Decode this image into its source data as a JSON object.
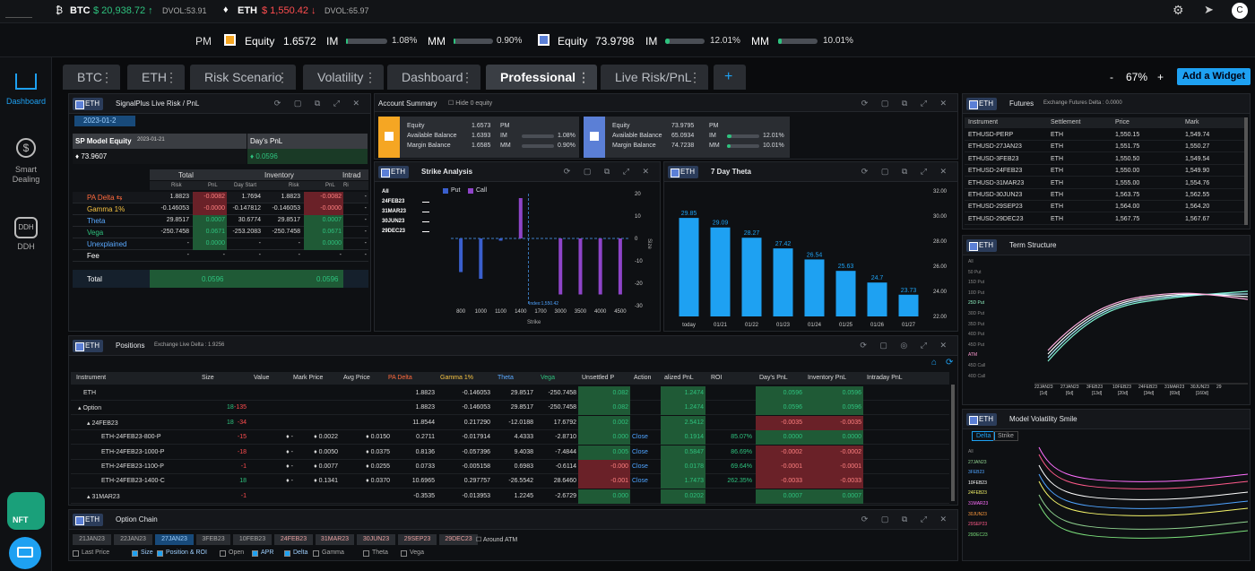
{
  "topbar": {
    "btc_label": "BTC",
    "btc_price": "$ 20,938.72 ↑",
    "btc_dvol": "DVOL:53.91",
    "eth_label": "ETH",
    "eth_price": "$ 1,550.42 ↓",
    "eth_dvol": "DVOL:65.97",
    "avatar": "C"
  },
  "summary": {
    "btc_sym": "PM",
    "equity1_label": "Equity",
    "equity1": "1.6572",
    "im1_label": "IM",
    "im1": "1.08%",
    "mm1_label": "MM",
    "mm1": "0.90%",
    "equity2_label": "Equity",
    "equity2": "73.9798",
    "im2_label": "IM",
    "im2": "12.01%",
    "mm2_label": "MM",
    "mm2": "10.01%",
    "im1_fill": 0.05,
    "mm1_fill": 0.04,
    "im2_fill": 0.12,
    "mm2_fill": 0.1
  },
  "sidebar": {
    "dashboard": "Dashboard",
    "smart1": "Smart",
    "smart2": "Dealing",
    "ddh_icon": "DDH",
    "ddh": "DDH",
    "nft": "NFT"
  },
  "tabs": [
    "BTC",
    "ETH",
    "Risk Scenario",
    "Volatility",
    "Dashboard",
    "Professional",
    "Live Risk/PnL"
  ],
  "zoom": {
    "minus": "-",
    "value": "67%",
    "plus": "+",
    "add_widget": "Add a Widget"
  },
  "live_risk": {
    "eth": "ETH",
    "title": "SignalPlus Live Risk / PnL",
    "date": "2023-01-2",
    "sp_label": "SP Model Equity",
    "sp_date": "2023-01-21",
    "sp_value": "73.9607",
    "day_pnl_label": "Day's PnL",
    "day_pnl": "0.0596",
    "groups": [
      "Total",
      "Inventory",
      "Intrad"
    ],
    "subheads": [
      "Risk",
      "PnL",
      "Day Start",
      "Risk",
      "PnL",
      "Ri"
    ],
    "rows": [
      {
        "name": "PA Delta ⇆",
        "c": [
          "1.8823",
          "-0.0082",
          "1.7694",
          "1.8823",
          "-0.0082",
          "-"
        ]
      },
      {
        "name": "Gamma 1%",
        "c": [
          "-0.146053",
          "-0.0000",
          "-0.147812",
          "-0.146053",
          "-0.0000",
          "-"
        ]
      },
      {
        "name": "Theta",
        "c": [
          "29.8517",
          "0.0007",
          "30.6774",
          "29.8517",
          "0.0007",
          "-"
        ]
      },
      {
        "name": "Vega",
        "c": [
          "-250.7458",
          "0.0671",
          "-253.2083",
          "-250.7458",
          "0.0671",
          "-"
        ]
      },
      {
        "name": "Unexplained",
        "c": [
          "-",
          "0.0000",
          "-",
          "-",
          "0.0000",
          "-"
        ]
      },
      {
        "name": "Fee",
        "c": [
          "-",
          "-",
          "-",
          "-",
          "-",
          "-"
        ]
      }
    ],
    "total_label": "Total",
    "total1": "0.0596",
    "total2": "0.0596"
  },
  "account": {
    "title": "Account Summary",
    "hide": "Hide 0 equity",
    "a": {
      "equity_l": "Equity",
      "equity": "1.6573",
      "avail_l": "Available Balance",
      "avail": "1.6393",
      "margin_l": "Margin Balance",
      "margin": "1.6585",
      "pm": "PM",
      "im_l": "IM",
      "im": "1.08%",
      "mm_l": "MM",
      "mm": "0.90%"
    },
    "b": {
      "equity_l": "Equity",
      "equity": "73.9795",
      "avail_l": "Available Balance",
      "avail": "65.0934",
      "margin_l": "Margin Balance",
      "margin": "74.7238",
      "pm": "PM",
      "im_l": "IM",
      "im": "12.01%",
      "mm_l": "MM",
      "mm": "10.01%"
    }
  },
  "strike": {
    "eth": "ETH",
    "title": "Strike Analysis",
    "legend_put": "Put",
    "legend_call": "Call",
    "expiries": [
      "All",
      "24FEB23",
      "31MAR23",
      "30JUN23",
      "29DEC23"
    ],
    "x_title": "Strike",
    "y_title": "Size",
    "index_label": "Index:1,550.42"
  },
  "theta_chart": {
    "eth": "ETH",
    "title": "7 Day Theta"
  },
  "futures": {
    "eth": "ETH",
    "title": "Futures",
    "delta": "Exchange Futures Delta : 0.0000",
    "headers": [
      "Instrument",
      "Settlement",
      "Price",
      "Mark"
    ],
    "rows": [
      [
        "ETHUSD-PERP",
        "ETH",
        "1,550.15",
        "1,549.74"
      ],
      [
        "ETHUSD-27JAN23",
        "ETH",
        "1,551.75",
        "1,550.27"
      ],
      [
        "ETHUSD-3FEB23",
        "ETH",
        "1,550.50",
        "1,549.54"
      ],
      [
        "ETHUSD-24FEB23",
        "ETH",
        "1,550.00",
        "1,549.90"
      ],
      [
        "ETHUSD-31MAR23",
        "ETH",
        "1,555.00",
        "1,554.76"
      ],
      [
        "ETHUSD-30JUN23",
        "ETH",
        "1,563.75",
        "1,562.55"
      ],
      [
        "ETHUSD-29SEP23",
        "ETH",
        "1,564.00",
        "1,564.20"
      ],
      [
        "ETHUSD-29DEC23",
        "ETH",
        "1,567.75",
        "1,567.67"
      ]
    ]
  },
  "term": {
    "eth": "ETH",
    "title": "Term Structure",
    "labels": [
      "All",
      "50 Put",
      "15D Put",
      "10D Put",
      "25D Put",
      "30D Put",
      "35D Put",
      "40D Put",
      "45D Put",
      "ATM",
      "45D Call",
      "40D Call"
    ],
    "xlabels": [
      "22JAN23",
      "27JAN23",
      "3FEB23",
      "10FEB23",
      "24FEB23",
      "31MAR23",
      "30JUN23",
      "29"
    ],
    "xdays": [
      "[1d]",
      "[6d]",
      "[13d]",
      "[20d]",
      "[34d]",
      "[69d]",
      "[160d]",
      ""
    ]
  },
  "smile": {
    "eth": "ETH",
    "title": "Model Volatility Smile",
    "tab1": "Delta",
    "tab2": "Strike",
    "labels": [
      "All",
      "27JAN23",
      "3FEB23",
      "10FEB23",
      "24FEB23",
      "31MAR23",
      "30JUN23",
      "29SEP23",
      "29DEC23"
    ]
  },
  "positions": {
    "eth": "ETH",
    "title": "Positions",
    "delta": "Exchange Live Delta : 1.9256",
    "headers": [
      "Instrument",
      "Size",
      "Value",
      "Mark Price",
      "Avg Price",
      "PA Delta",
      "Gamma 1%",
      "Theta",
      "Vega",
      "Unsettled P",
      "Action",
      "alized PnL",
      "ROI",
      "Day's PnL",
      "Inventory PnL",
      "Intraday PnL"
    ],
    "rows": [
      {
        "inst": "ETH",
        "size": "",
        "size2": "",
        "value": "",
        "mark": "",
        "avg": "",
        "delta": "1.8823",
        "gamma": "-0.146053",
        "theta": "29.8517",
        "vega": "-250.7458",
        "unset": "0.082",
        "action": "",
        "real": "1.2474",
        "roi": "",
        "day": "0.0596",
        "inv": "0.0596",
        "intra": ""
      },
      {
        "inst": "▴ Option",
        "size": "-135",
        "size2": "18",
        "value": "",
        "mark": "",
        "avg": "",
        "delta": "1.8823",
        "gamma": "-0.146053",
        "theta": "29.8517",
        "vega": "-250.7458",
        "unset": "0.082",
        "action": "",
        "real": "1.2474",
        "roi": "",
        "day": "0.0596",
        "inv": "0.0596",
        "intra": ""
      },
      {
        "inst": "▴ 24FEB23",
        "size": "-34",
        "size2": "18",
        "value": "",
        "mark": "",
        "avg": "",
        "delta": "11.8544",
        "gamma": "0.217290",
        "theta": "-12.0188",
        "vega": "17.6792",
        "unset": "0.002",
        "action": "",
        "real": "2.5412",
        "roi": "",
        "day": "-0.0035",
        "inv": "-0.0035",
        "intra": ""
      },
      {
        "inst": "ETH-24FEB23-800-P",
        "size": "-15",
        "size2": "",
        "value": "♦ -",
        "mark": "♦ 0.0022",
        "avg": "♦ 0.0150",
        "delta": "0.2711",
        "gamma": "-0.017914",
        "theta": "4.4333",
        "vega": "-2.8710",
        "unset": "0.000",
        "action": "Close",
        "real": "0.1914",
        "roi": "85.07%",
        "day": "0.0000",
        "inv": "0.0000",
        "intra": ""
      },
      {
        "inst": "ETH-24FEB23-1000-P",
        "size": "-18",
        "size2": "",
        "value": "♦ -",
        "mark": "♦ 0.0050",
        "avg": "♦ 0.0375",
        "delta": "0.8136",
        "gamma": "-0.057396",
        "theta": "9.4038",
        "vega": "-7.4844",
        "unset": "0.005",
        "action": "Close",
        "real": "0.5847",
        "roi": "86.69%",
        "day": "-0.0002",
        "inv": "-0.0002",
        "intra": ""
      },
      {
        "inst": "ETH-24FEB23-1100-P",
        "size": "-1",
        "size2": "",
        "value": "♦ -",
        "mark": "♦ 0.0077",
        "avg": "♦ 0.0255",
        "delta": "0.0733",
        "gamma": "-0.005158",
        "theta": "0.6983",
        "vega": "-0.6114",
        "unset": "-0.000",
        "action": "Close",
        "real": "0.0178",
        "roi": "69.64%",
        "day": "-0.0001",
        "inv": "-0.0001",
        "intra": ""
      },
      {
        "inst": "ETH-24FEB23-1400-C",
        "size": "18",
        "size2": "",
        "value": "♦ -",
        "mark": "♦ 0.1341",
        "avg": "♦ 0.0370",
        "delta": "10.6965",
        "gamma": "0.297757",
        "theta": "-26.5542",
        "vega": "28.6460",
        "unset": "-0.001",
        "action": "Close",
        "real": "1.7473",
        "roi": "262.35%",
        "day": "-0.0033",
        "inv": "-0.0033",
        "intra": ""
      },
      {
        "inst": "▴ 31MAR23",
        "size": "-1",
        "size2": "",
        "value": "",
        "mark": "",
        "avg": "",
        "delta": "-0.3535",
        "gamma": "-0.013953",
        "theta": "1.2245",
        "vega": "-2.6729",
        "unset": "0.000",
        "action": "",
        "real": "0.0202",
        "roi": "",
        "day": "0.0007",
        "inv": "0.0007",
        "intra": ""
      }
    ]
  },
  "chain": {
    "eth": "ETH",
    "title": "Option Chain",
    "expiries": [
      "21JAN23",
      "22JAN23",
      "27JAN23",
      "3FEB23",
      "10FEB23",
      "24FEB23",
      "31MAR23",
      "30JUN23",
      "29SEP23",
      "29DEC23"
    ],
    "around": "Around ATM",
    "checks": [
      "Last Price",
      "Size",
      "Position & ROI",
      "Open",
      "APR",
      "Delta",
      "Gamma",
      "Theta",
      "Vega"
    ]
  },
  "chart_data": [
    {
      "type": "bar",
      "title": "7 Day Theta",
      "categories": [
        "today",
        "01/21",
        "01/22",
        "01/23",
        "01/24",
        "01/25",
        "01/26",
        "01/27"
      ],
      "values": [
        29.85,
        29.09,
        28.27,
        27.42,
        26.54,
        25.63,
        24.7,
        23.73
      ],
      "ylim": [
        22,
        32
      ],
      "yticks": [
        "32.00",
        "30.00",
        "28.00",
        "26.00",
        "24.00",
        "22.00"
      ]
    },
    {
      "type": "bar",
      "title": "Strike Analysis",
      "xlabel": "Strike",
      "ylabel": "Size",
      "categories": [
        "800",
        "1000",
        "1100",
        "1400",
        "1700",
        "3000",
        "3500",
        "4000",
        "4500"
      ],
      "series": [
        {
          "name": "Put",
          "values": [
            -15,
            -18,
            -1,
            0,
            0,
            0,
            0,
            0,
            0
          ]
        },
        {
          "name": "Call",
          "values": [
            0,
            0,
            0,
            18,
            0,
            -25,
            -25,
            -25,
            -25
          ]
        }
      ],
      "ylim": [
        -30,
        20
      ],
      "yticks": [
        "20",
        "10",
        "0",
        "-10",
        "-20",
        "-30"
      ]
    }
  ]
}
